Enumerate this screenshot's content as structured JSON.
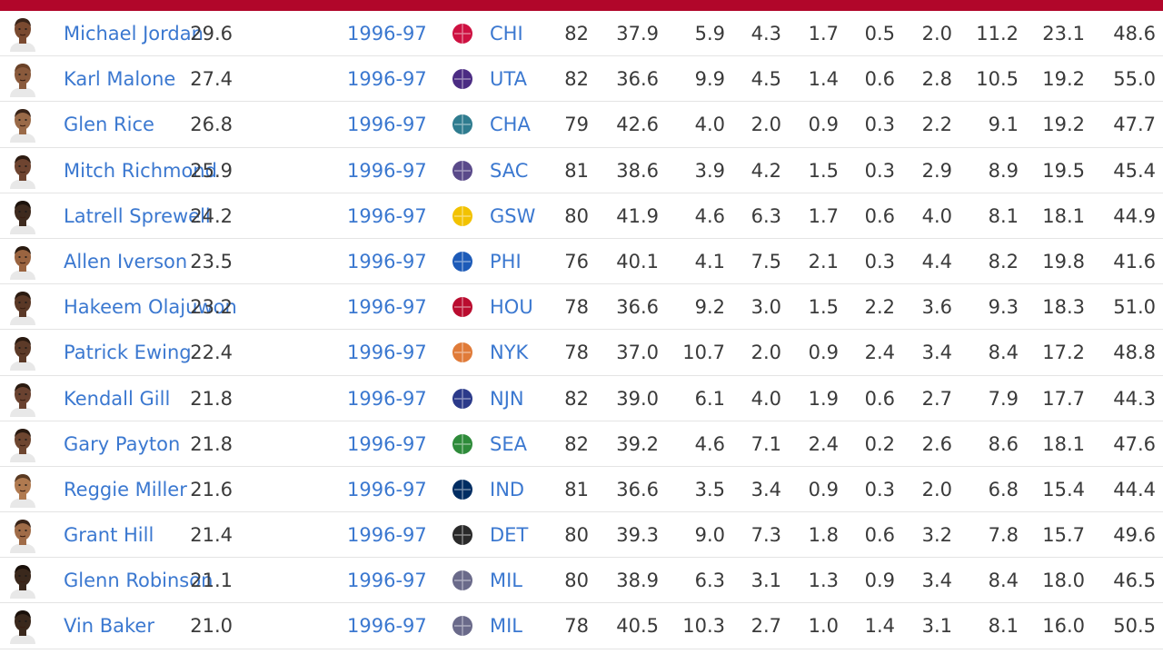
{
  "colors": {
    "header_bar": "#b1062a",
    "link": "#3b78d0",
    "text": "#3a3a3a",
    "row_divider": "#e4e4e4"
  },
  "rows": [
    {
      "name": "Michael Jordan",
      "pts": "29.6",
      "season": "1996-97",
      "team": "CHI",
      "logo": "bulls-logo-icon",
      "logo_color": "#ce1141",
      "skin": "#7a4a30",
      "hair": "#3a2418",
      "gp": "82",
      "min": "37.9",
      "reb": "5.9",
      "ast": "4.3",
      "stl": "1.7",
      "blk": "0.5",
      "tov": "2.0",
      "fga": "11.2",
      "fgp": "23.1",
      "last": "48.6"
    },
    {
      "name": "Karl Malone",
      "pts": "27.4",
      "season": "1996-97",
      "team": "UTA",
      "logo": "jazz-logo-icon",
      "logo_color": "#4b2c83",
      "skin": "#8a5a3c",
      "hair": "#6a4228",
      "gp": "82",
      "min": "36.6",
      "reb": "9.9",
      "ast": "4.5",
      "stl": "1.4",
      "blk": "0.6",
      "tov": "2.8",
      "fga": "10.5",
      "fgp": "19.2",
      "last": "55.0"
    },
    {
      "name": "Glen Rice",
      "pts": "26.8",
      "season": "1996-97",
      "team": "CHA",
      "logo": "hornets-logo-icon",
      "logo_color": "#2f7c8f",
      "skin": "#9a6a48",
      "hair": "#3a2418",
      "gp": "79",
      "min": "42.6",
      "reb": "4.0",
      "ast": "2.0",
      "stl": "0.9",
      "blk": "0.3",
      "tov": "2.2",
      "fga": "9.1",
      "fgp": "19.2",
      "last": "47.7"
    },
    {
      "name": "Mitch Richmond",
      "pts": "25.9",
      "season": "1996-97",
      "team": "SAC",
      "logo": "kings-logo-icon",
      "logo_color": "#5a4a8a",
      "skin": "#6e4430",
      "hair": "#2e1c12",
      "gp": "81",
      "min": "38.6",
      "reb": "3.9",
      "ast": "4.2",
      "stl": "1.5",
      "blk": "0.3",
      "tov": "2.9",
      "fga": "8.9",
      "fgp": "19.5",
      "last": "45.4"
    },
    {
      "name": "Latrell Sprewell",
      "pts": "24.2",
      "season": "1996-97",
      "team": "GSW",
      "logo": "warriors-logo-icon",
      "logo_color": "#f2c200",
      "skin": "#3e2a1e",
      "hair": "#1c120c",
      "gp": "80",
      "min": "41.9",
      "reb": "4.6",
      "ast": "6.3",
      "stl": "1.7",
      "blk": "0.6",
      "tov": "4.0",
      "fga": "8.1",
      "fgp": "18.1",
      "last": "44.9"
    },
    {
      "name": "Allen Iverson",
      "pts": "23.5",
      "season": "1996-97",
      "team": "PHI",
      "logo": "76ers-logo-icon",
      "logo_color": "#1d5bb8",
      "skin": "#9a6440",
      "hair": "#2a1a10",
      "gp": "76",
      "min": "40.1",
      "reb": "4.1",
      "ast": "7.5",
      "stl": "2.1",
      "blk": "0.3",
      "tov": "4.4",
      "fga": "8.2",
      "fgp": "19.8",
      "last": "41.6"
    },
    {
      "name": "Hakeem Olajuwon",
      "pts": "23.2",
      "season": "1996-97",
      "team": "HOU",
      "logo": "rockets-logo-icon",
      "logo_color": "#ba0c2f",
      "skin": "#5a3826",
      "hair": "#2a1a10",
      "gp": "78",
      "min": "36.6",
      "reb": "9.2",
      "ast": "3.0",
      "stl": "1.5",
      "blk": "2.2",
      "tov": "3.6",
      "fga": "9.3",
      "fgp": "18.3",
      "last": "51.0"
    },
    {
      "name": "Patrick Ewing",
      "pts": "22.4",
      "season": "1996-97",
      "team": "NYK",
      "logo": "knicks-logo-icon",
      "logo_color": "#e07b39",
      "skin": "#5c3a28",
      "hair": "#2a1a10",
      "gp": "78",
      "min": "37.0",
      "reb": "10.7",
      "ast": "2.0",
      "stl": "0.9",
      "blk": "2.4",
      "tov": "3.4",
      "fga": "8.4",
      "fgp": "17.2",
      "last": "48.8"
    },
    {
      "name": "Kendall Gill",
      "pts": "21.8",
      "season": "1996-97",
      "team": "NJN",
      "logo": "nets-logo-icon",
      "logo_color": "#2b3a8a",
      "skin": "#6a4230",
      "hair": "#2a1a10",
      "gp": "82",
      "min": "39.0",
      "reb": "6.1",
      "ast": "4.0",
      "stl": "1.9",
      "blk": "0.6",
      "tov": "2.7",
      "fga": "7.9",
      "fgp": "17.7",
      "last": "44.3"
    },
    {
      "name": "Gary Payton",
      "pts": "21.8",
      "season": "1996-97",
      "team": "SEA",
      "logo": "sonics-logo-icon",
      "logo_color": "#2e8b3a",
      "skin": "#6e4630",
      "hair": "#2a1a10",
      "gp": "82",
      "min": "39.2",
      "reb": "4.6",
      "ast": "7.1",
      "stl": "2.4",
      "blk": "0.2",
      "tov": "2.6",
      "fga": "8.6",
      "fgp": "18.1",
      "last": "47.6"
    },
    {
      "name": "Reggie Miller",
      "pts": "21.6",
      "season": "1996-97",
      "team": "IND",
      "logo": "pacers-logo-icon",
      "logo_color": "#002d62",
      "skin": "#b07a50",
      "hair": "#5a3a22",
      "gp": "81",
      "min": "36.6",
      "reb": "3.5",
      "ast": "3.4",
      "stl": "0.9",
      "blk": "0.3",
      "tov": "2.0",
      "fga": "6.8",
      "fgp": "15.4",
      "last": "44.4"
    },
    {
      "name": "Grant Hill",
      "pts": "21.4",
      "season": "1996-97",
      "team": "DET",
      "logo": "pistons-logo-icon",
      "logo_color": "#2a2a2a",
      "skin": "#a06c48",
      "hair": "#3a2418",
      "gp": "80",
      "min": "39.3",
      "reb": "9.0",
      "ast": "7.3",
      "stl": "1.8",
      "blk": "0.6",
      "tov": "3.2",
      "fga": "7.8",
      "fgp": "15.7",
      "last": "49.6"
    },
    {
      "name": "Glenn Robinson",
      "pts": "21.1",
      "season": "1996-97",
      "team": "MIL",
      "logo": "bucks-logo-icon",
      "logo_color": "#6a6a8a",
      "skin": "#3a281c",
      "hair": "#1a100a",
      "gp": "80",
      "min": "38.9",
      "reb": "6.3",
      "ast": "3.1",
      "stl": "1.3",
      "blk": "0.9",
      "tov": "3.4",
      "fga": "8.4",
      "fgp": "18.0",
      "last": "46.5"
    },
    {
      "name": "Vin Baker",
      "pts": "21.0",
      "season": "1996-97",
      "team": "MIL",
      "logo": "bucks-logo-icon",
      "logo_color": "#6a6a8a",
      "skin": "#3a281c",
      "hair": "#1a100a",
      "gp": "78",
      "min": "40.5",
      "reb": "10.3",
      "ast": "2.7",
      "stl": "1.0",
      "blk": "1.4",
      "tov": "3.1",
      "fga": "8.1",
      "fgp": "16.0",
      "last": "50.5"
    }
  ]
}
